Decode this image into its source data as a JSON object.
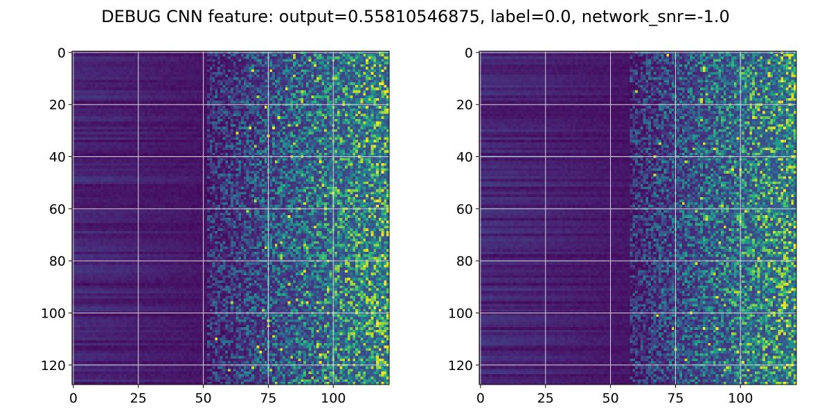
{
  "figure": {
    "suptitle": "DEBUG CNN feature: output=0.55810546875, label=0.0, network_snr=-1.0"
  },
  "colors": {
    "colormap": "viridis",
    "grid": "#d9d9d9",
    "axes": "#000000",
    "background": "#ffffff"
  },
  "chart_data": [
    {
      "type": "heatmap",
      "title": "",
      "xlabel": "",
      "ylabel": "",
      "rows": 128,
      "cols": 122,
      "xlim": [
        -0.5,
        121.5
      ],
      "ylim": [
        127.5,
        -0.5
      ],
      "y_inverted": true,
      "xticks": [
        0,
        25,
        50,
        75,
        100
      ],
      "xtick_labels": [
        "0",
        "25",
        "50",
        "75",
        "100"
      ],
      "yticks": [
        0,
        20,
        40,
        60,
        80,
        100,
        120
      ],
      "ytick_labels": [
        "0",
        "20",
        "40",
        "60",
        "80",
        "100",
        "120"
      ],
      "grid": true,
      "colormap": "viridis",
      "value_range": [
        0,
        1
      ],
      "pattern": "low, row-striped values for columns 0-50; increasingly bright noisy pixels for columns ~55-121 with scattered bright yellow peaks"
    },
    {
      "type": "heatmap",
      "title": "",
      "xlabel": "",
      "ylabel": "",
      "rows": 128,
      "cols": 122,
      "xlim": [
        -0.5,
        121.5
      ],
      "ylim": [
        127.5,
        -0.5
      ],
      "y_inverted": true,
      "xticks": [
        0,
        25,
        50,
        75,
        100
      ],
      "xtick_labels": [
        "0",
        "25",
        "50",
        "75",
        "100"
      ],
      "yticks": [
        0,
        20,
        40,
        60,
        80,
        100,
        120
      ],
      "ytick_labels": [
        "0",
        "20",
        "40",
        "60",
        "80",
        "100",
        "120"
      ],
      "grid": true,
      "colormap": "viridis",
      "value_range": [
        0,
        1
      ],
      "pattern": "low, row-striped values for columns 0-55; noisy teal/green pixels for columns ~60-121 with a few bright yellow peaks"
    }
  ]
}
